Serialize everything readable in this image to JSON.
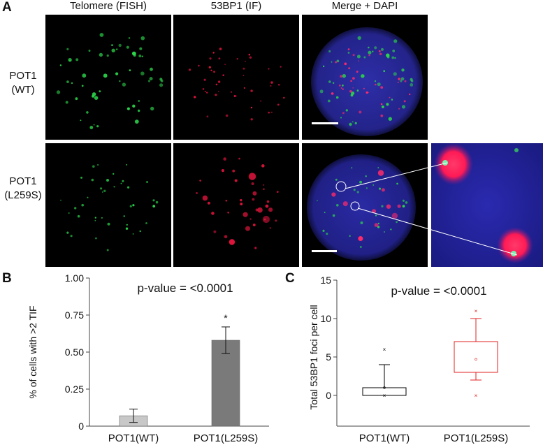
{
  "figure": {
    "panel_a_letter": "A",
    "panel_b_letter": "B",
    "panel_c_letter": "C",
    "column_headers": [
      "Telomere (FISH)",
      "53BP1 (IF)",
      "Merge + DAPI"
    ],
    "row_labels": [
      {
        "line1": "POT1",
        "line2": "(WT)"
      },
      {
        "line1": "POT1",
        "line2": "(L259S)"
      }
    ],
    "colors": {
      "telomere": "#2bd44a",
      "bp53": "#e0143c",
      "dapi": "#2a2a9a",
      "bar_wt": "#c8c8c8",
      "bar_mut": "#7a7a7a",
      "box_wt": "#000000",
      "box_mut": "#e02020"
    }
  },
  "chart_data": [
    {
      "type": "bar",
      "categories": [
        "POT1(WT)",
        "POT1(L259S)"
      ],
      "values": [
        0.07,
        0.58
      ],
      "error": [
        0.045,
        0.09
      ],
      "ylabel": "% of cells with >2 TIF",
      "ylim": [
        0,
        1.0
      ],
      "yticks": [
        "0",
        "0.25",
        "0.50",
        "0.75",
        "1.00"
      ],
      "ytick_values": [
        0,
        0.25,
        0.5,
        0.75,
        1.0
      ],
      "annotation": "p-value = <0.0001",
      "significance": "*"
    },
    {
      "type": "box",
      "categories": [
        "POT1(WT)",
        "POT1(L259S)"
      ],
      "ylabel": "Total 53BP1 foci per cell",
      "ylim": [
        -4,
        15
      ],
      "yticks": [
        "0",
        "5",
        "10",
        "15"
      ],
      "ytick_values": [
        0,
        5,
        10,
        15
      ],
      "annotation": "p-value = <0.0001",
      "boxes": [
        {
          "q1": 0,
          "median": 0,
          "q3": 1,
          "whisker_low": 0,
          "whisker_high": 4,
          "mean": 1,
          "outliers": [
            6,
            0
          ]
        },
        {
          "q1": 3,
          "median": 3,
          "q3": 7,
          "whisker_low": 2,
          "whisker_high": 10,
          "mean": 4.7,
          "outliers": [
            11,
            0
          ]
        }
      ]
    }
  ]
}
